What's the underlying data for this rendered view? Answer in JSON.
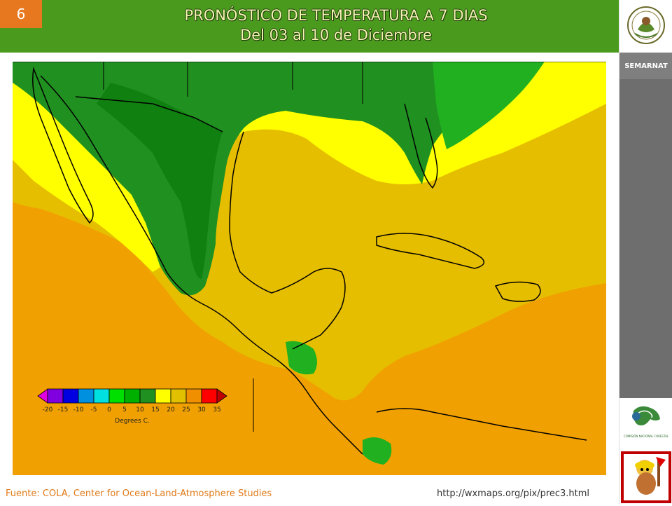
{
  "slide_number": "6",
  "title": "PRONÓSTICO DE TEMPERATURA A 7 DIAS",
  "subtitle": "Del 03 al 10 de Diciembre",
  "sidebar": {
    "brand": "SEMARNAT",
    "conafor_caption": "COMISIÓN NACIONAL FORESTAL"
  },
  "legend": {
    "labels": [
      "-20",
      "-15",
      "-10",
      "-5",
      "0",
      "5",
      "10",
      "15",
      "20",
      "25",
      "30",
      "35"
    ],
    "unit": "Degrees C.",
    "colors": [
      "#e000e0",
      "#8000e0",
      "#0000e0",
      "#0090e0",
      "#00e0e0",
      "#00e000",
      "#00b000",
      "#209020",
      "#ffff00",
      "#e0c000",
      "#f09000",
      "#ff0000",
      "#c00000"
    ]
  },
  "map_colors": {
    "ocean_warm": "#f0a000",
    "mid": "#e6be00",
    "yellow": "#ffff00",
    "green_light": "#20b020",
    "green_dark": "#209020",
    "green_deep": "#108010"
  },
  "footer": {
    "source": "Fuente: COLA, Center  for Ocean-Land-Atmosphere Studies",
    "url": "http://wxmaps.org/pix/prec3.html"
  }
}
